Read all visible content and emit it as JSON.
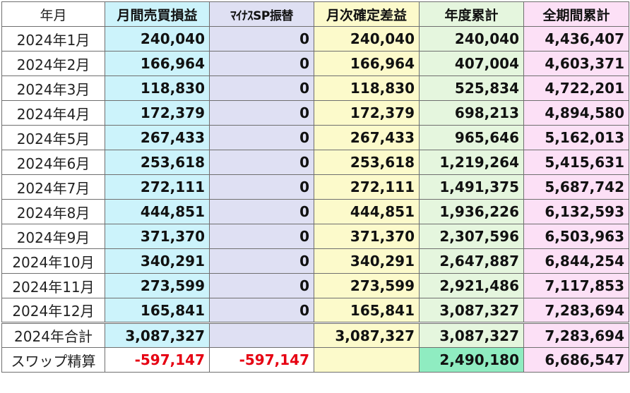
{
  "headers": [
    "年月",
    "月間売買損益",
    "ﾏｲﾅｽSP振替",
    "月次確定差益",
    "年度累計",
    "全期間累計"
  ],
  "rows": [
    {
      "ym": "2024年1月",
      "pl": "240,040",
      "sp": "0",
      "net": "240,040",
      "ytd": "240,040",
      "all": "4,436,407"
    },
    {
      "ym": "2024年2月",
      "pl": "166,964",
      "sp": "0",
      "net": "166,964",
      "ytd": "407,004",
      "all": "4,603,371"
    },
    {
      "ym": "2024年3月",
      "pl": "118,830",
      "sp": "0",
      "net": "118,830",
      "ytd": "525,834",
      "all": "4,722,201"
    },
    {
      "ym": "2024年4月",
      "pl": "172,379",
      "sp": "0",
      "net": "172,379",
      "ytd": "698,213",
      "all": "4,894,580"
    },
    {
      "ym": "2024年5月",
      "pl": "267,433",
      "sp": "0",
      "net": "267,433",
      "ytd": "965,646",
      "all": "5,162,013"
    },
    {
      "ym": "2024年6月",
      "pl": "253,618",
      "sp": "0",
      "net": "253,618",
      "ytd": "1,219,264",
      "all": "5,415,631"
    },
    {
      "ym": "2024年7月",
      "pl": "272,111",
      "sp": "0",
      "net": "272,111",
      "ytd": "1,491,375",
      "all": "5,687,742"
    },
    {
      "ym": "2024年8月",
      "pl": "444,851",
      "sp": "0",
      "net": "444,851",
      "ytd": "1,936,226",
      "all": "6,132,593"
    },
    {
      "ym": "2024年9月",
      "pl": "371,370",
      "sp": "0",
      "net": "371,370",
      "ytd": "2,307,596",
      "all": "6,503,963"
    },
    {
      "ym": "2024年10月",
      "pl": "340,291",
      "sp": "0",
      "net": "340,291",
      "ytd": "2,647,887",
      "all": "6,844,254"
    },
    {
      "ym": "2024年11月",
      "pl": "273,599",
      "sp": "0",
      "net": "273,599",
      "ytd": "2,921,486",
      "all": "7,117,853"
    },
    {
      "ym": "2024年12月",
      "pl": "165,841",
      "sp": "0",
      "net": "165,841",
      "ytd": "3,087,327",
      "all": "7,283,694"
    }
  ],
  "total": {
    "ym": "2024年合計",
    "pl": "3,087,327",
    "sp": "",
    "net": "3,087,327",
    "ytd": "3,087,327",
    "all": "7,283,694"
  },
  "swap": {
    "ym": "スワップ精算",
    "pl": "-597,147",
    "sp": "-597,147",
    "net": "",
    "ytd": "2,490,180",
    "all": "6,686,547"
  },
  "colors": {
    "negative": "#e60012",
    "swap_ytd_highlight": "#8fecc1"
  }
}
